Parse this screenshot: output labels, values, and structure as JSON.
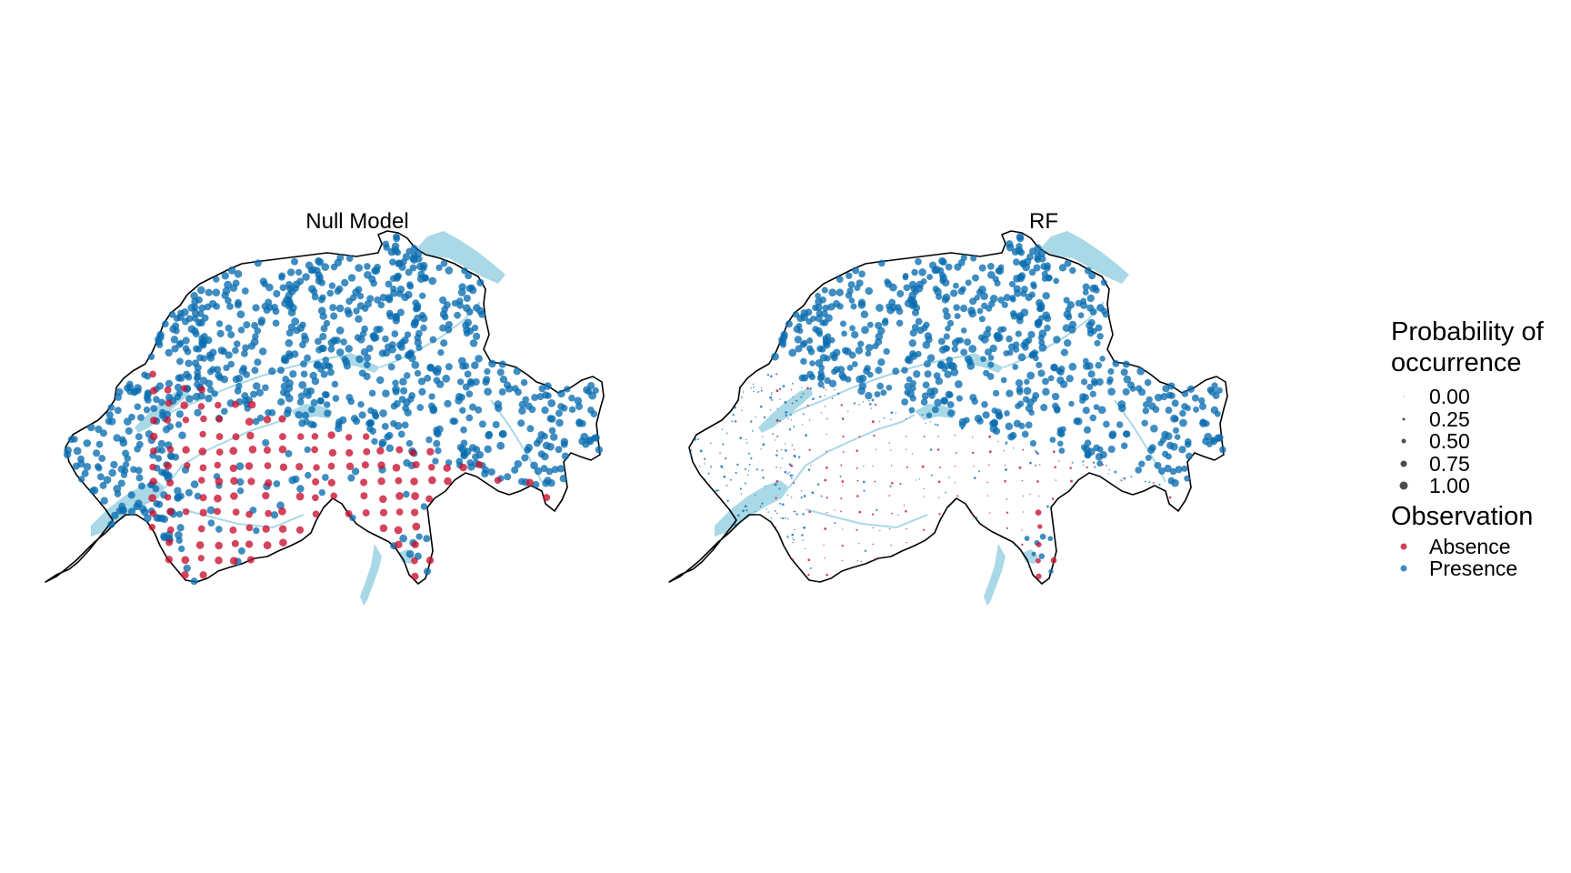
{
  "panels": [
    {
      "id": "null",
      "title": "Null Model"
    },
    {
      "id": "rf",
      "title": "RF"
    }
  ],
  "legend": {
    "size_title": "Probability of occurrence",
    "size_title_line1": "Probability of",
    "size_title_line2": "occurrence",
    "size_levels": [
      "0.00",
      "0.25",
      "0.50",
      "0.75",
      "1.00"
    ],
    "color_title": "Observation",
    "color_entries": [
      {
        "label": "Absence",
        "color": "#c8102e"
      },
      {
        "label": "Presence",
        "color": "#0a6db0"
      }
    ]
  },
  "colors": {
    "absence": "#c8102e",
    "presence": "#0a6db0",
    "water": "#a9d8e6",
    "border": "#000000",
    "legend_key": "#4d4d4d"
  }
}
